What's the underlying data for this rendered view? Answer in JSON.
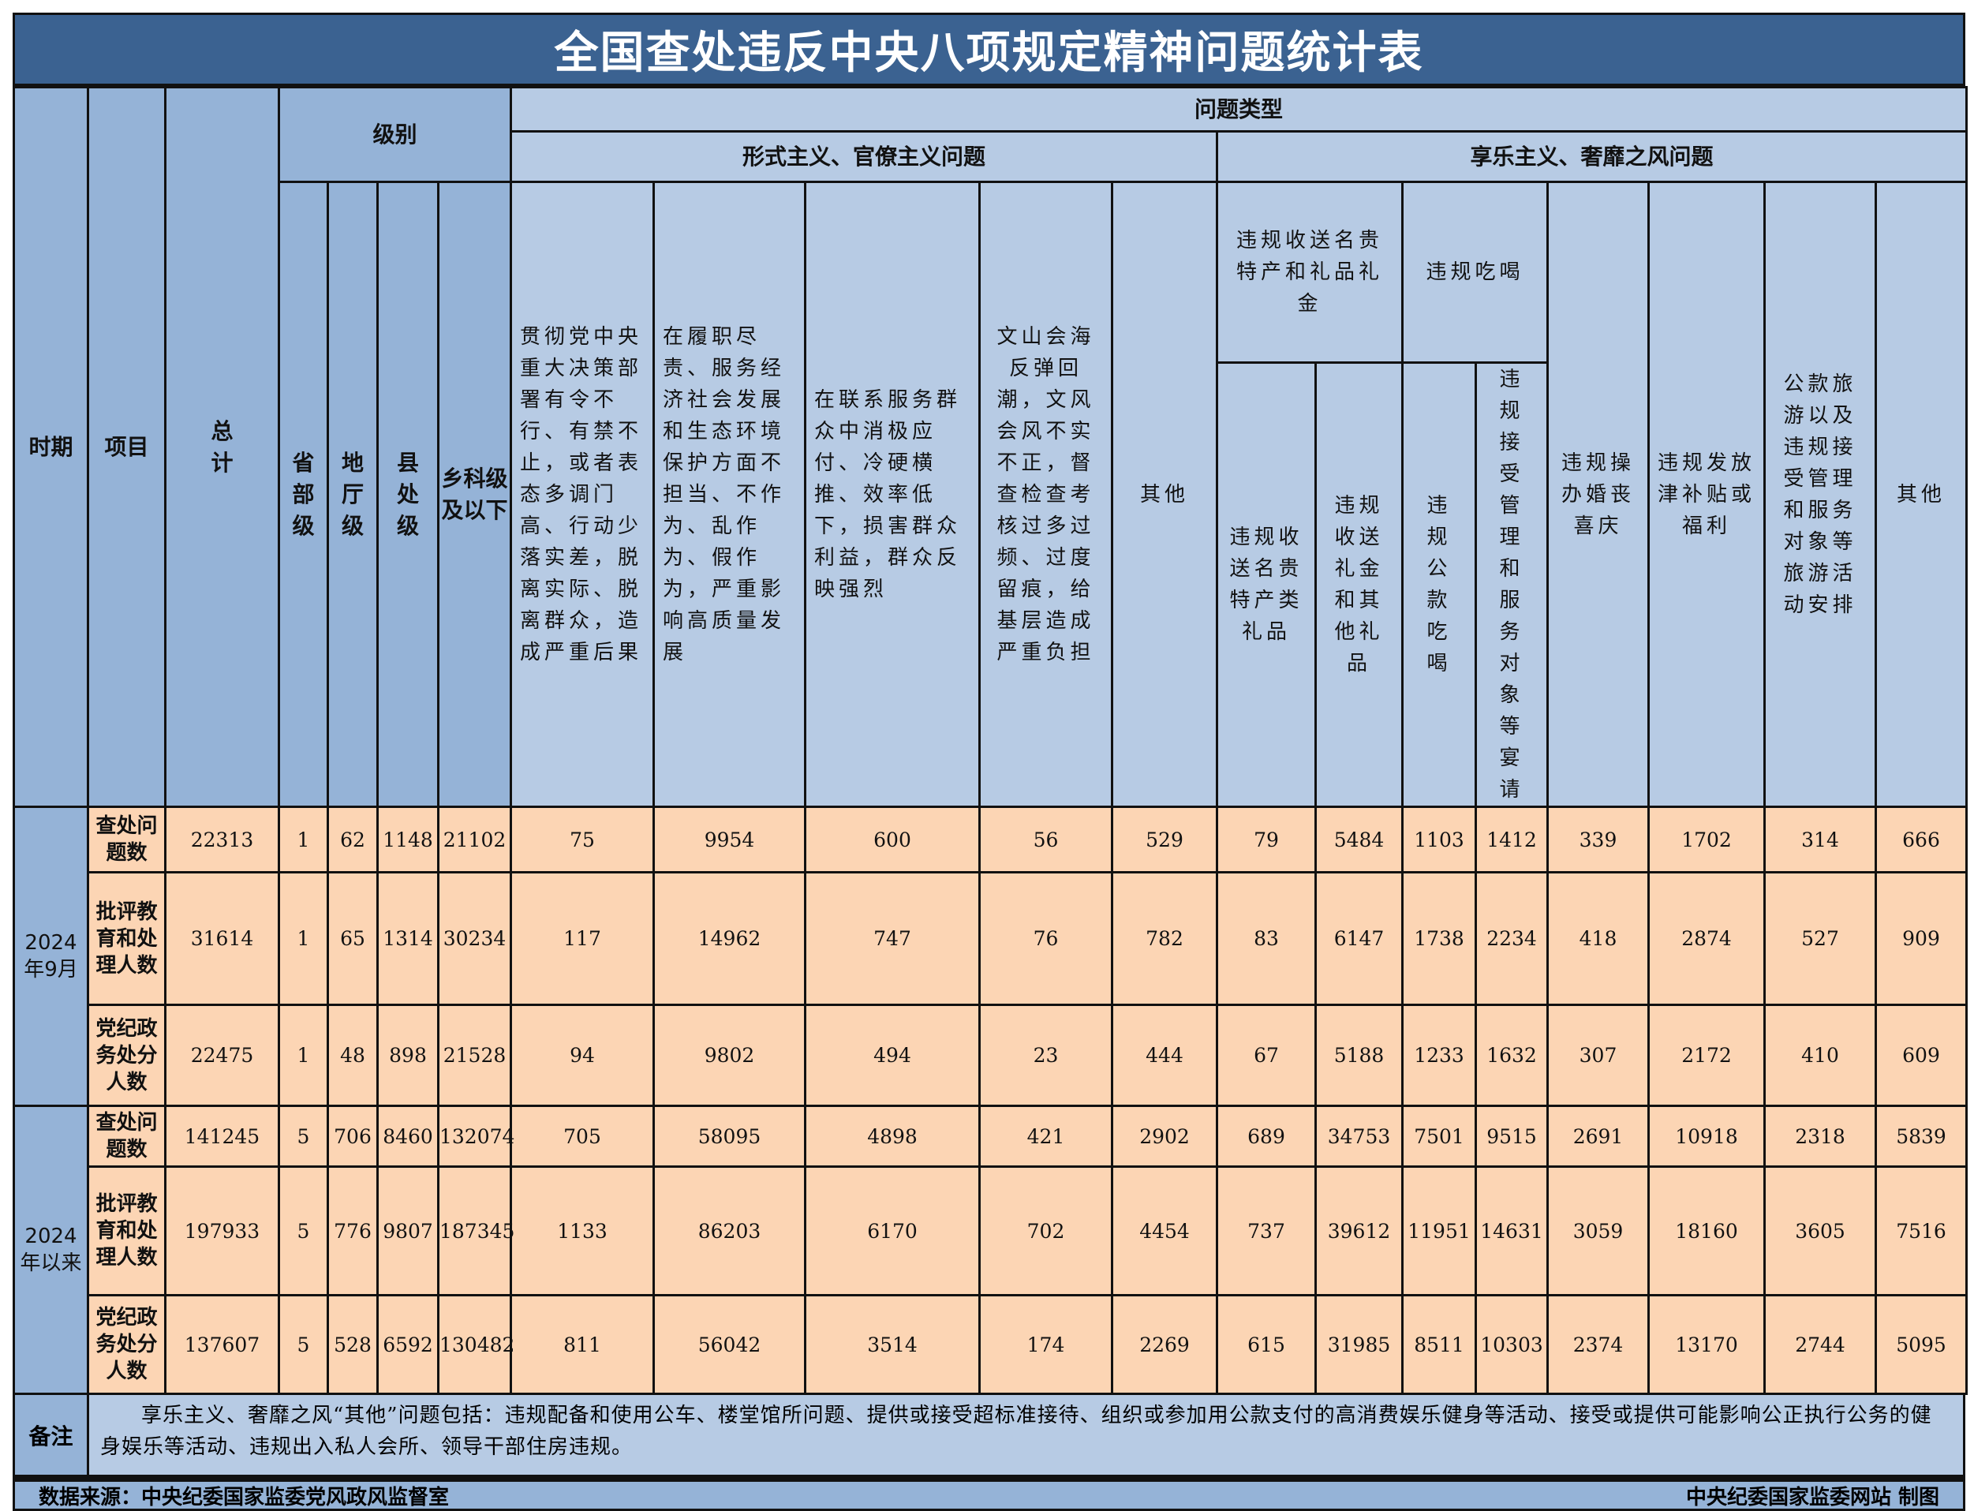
{
  "title": "全国查处违反中央八项规定精神问题统计表",
  "colors": {
    "title_bg": "#3b6291",
    "header_bg": "#b7cbe4",
    "header_dark": "#95b3d7",
    "data_bg": "#fcd5b4"
  },
  "header": {
    "period": "时期",
    "item": "项目",
    "total": "总计",
    "level": "级别",
    "levels": [
      "省部级",
      "地厅级",
      "县处级",
      "乡科级及以下"
    ],
    "problem_type": "问题类型",
    "formalism": "形式主义、官僚主义问题",
    "formalism_cols": [
      "贯彻党中央重大决策部署有令不行、有禁不止，或者表态多调门高、行动少落实差，脱离实际、脱离群众，造成严重后果",
      "在履职尽责、服务经济社会发展和生态环境保护方面不担当、不作为、乱作为、假作为，严重影响高质量发展",
      "在联系服务群众中消极应付、冷硬横推、效率低下，损害群众利益，群众反映强烈",
      "文山会海反弹回潮，文风会风不实不正，督查检查考核过多过频、过度留痕，给基层造成严重负担",
      "其他"
    ],
    "hedonism": "享乐主义、奢靡之风问题",
    "gifts_group": "违规收送名贵特产和礼品礼金",
    "gifts_cols": [
      "违规收送名贵特产类礼品",
      "违规收送礼金和其他礼品"
    ],
    "dining_group": "违规吃喝",
    "dining_cols": [
      "违规公款吃喝",
      "违规接受管理和服务对象等宴请"
    ],
    "other_hedonism_cols": [
      "违规操办婚丧喜庆",
      "违规发放津补贴或福利",
      "公款旅游以及违规接受管理和服务对象等旅游活动安排",
      "其他"
    ]
  },
  "periods": [
    {
      "label": "2024年9月",
      "rows": [
        {
          "item": "查处问题数",
          "values": [
            22313,
            1,
            62,
            1148,
            21102,
            75,
            9954,
            600,
            56,
            529,
            79,
            5484,
            1103,
            1412,
            339,
            1702,
            314,
            666
          ]
        },
        {
          "item": "批评教育和处理人数",
          "values": [
            31614,
            1,
            65,
            1314,
            30234,
            117,
            14962,
            747,
            76,
            782,
            83,
            6147,
            1738,
            2234,
            418,
            2874,
            527,
            909
          ]
        },
        {
          "item": "党纪政务处分人数",
          "values": [
            22475,
            1,
            48,
            898,
            21528,
            94,
            9802,
            494,
            23,
            444,
            67,
            5188,
            1233,
            1632,
            307,
            2172,
            410,
            609
          ]
        }
      ]
    },
    {
      "label": "2024年以来",
      "rows": [
        {
          "item": "查处问题数",
          "values": [
            141245,
            5,
            706,
            8460,
            132074,
            705,
            58095,
            4898,
            421,
            2902,
            689,
            34753,
            7501,
            9515,
            2691,
            10918,
            2318,
            5839
          ]
        },
        {
          "item": "批评教育和处理人数",
          "values": [
            197933,
            5,
            776,
            9807,
            187345,
            1133,
            86203,
            6170,
            702,
            4454,
            737,
            39612,
            11951,
            14631,
            3059,
            18160,
            3605,
            7516
          ]
        },
        {
          "item": "党纪政务处分人数",
          "values": [
            137607,
            5,
            528,
            6592,
            130482,
            811,
            56042,
            3514,
            174,
            2269,
            615,
            31985,
            8511,
            10303,
            2374,
            13170,
            2744,
            5095
          ]
        }
      ]
    }
  ],
  "note": {
    "label": "备注",
    "text": "享乐主义、奢靡之风“其他”问题包括：违规配备和使用公车、楼堂馆所问题、提供或接受超标准接待、组织或参加用公款支付的高消费娱乐健身等活动、接受或提供可能影响公正执行公务的健身娱乐等活动、违规出入私人会所、领导干部住房违规。"
  },
  "footer": {
    "source": "数据来源：中央纪委国家监委党风政风监督室",
    "credit": "中央纪委国家监委网站 制图"
  }
}
